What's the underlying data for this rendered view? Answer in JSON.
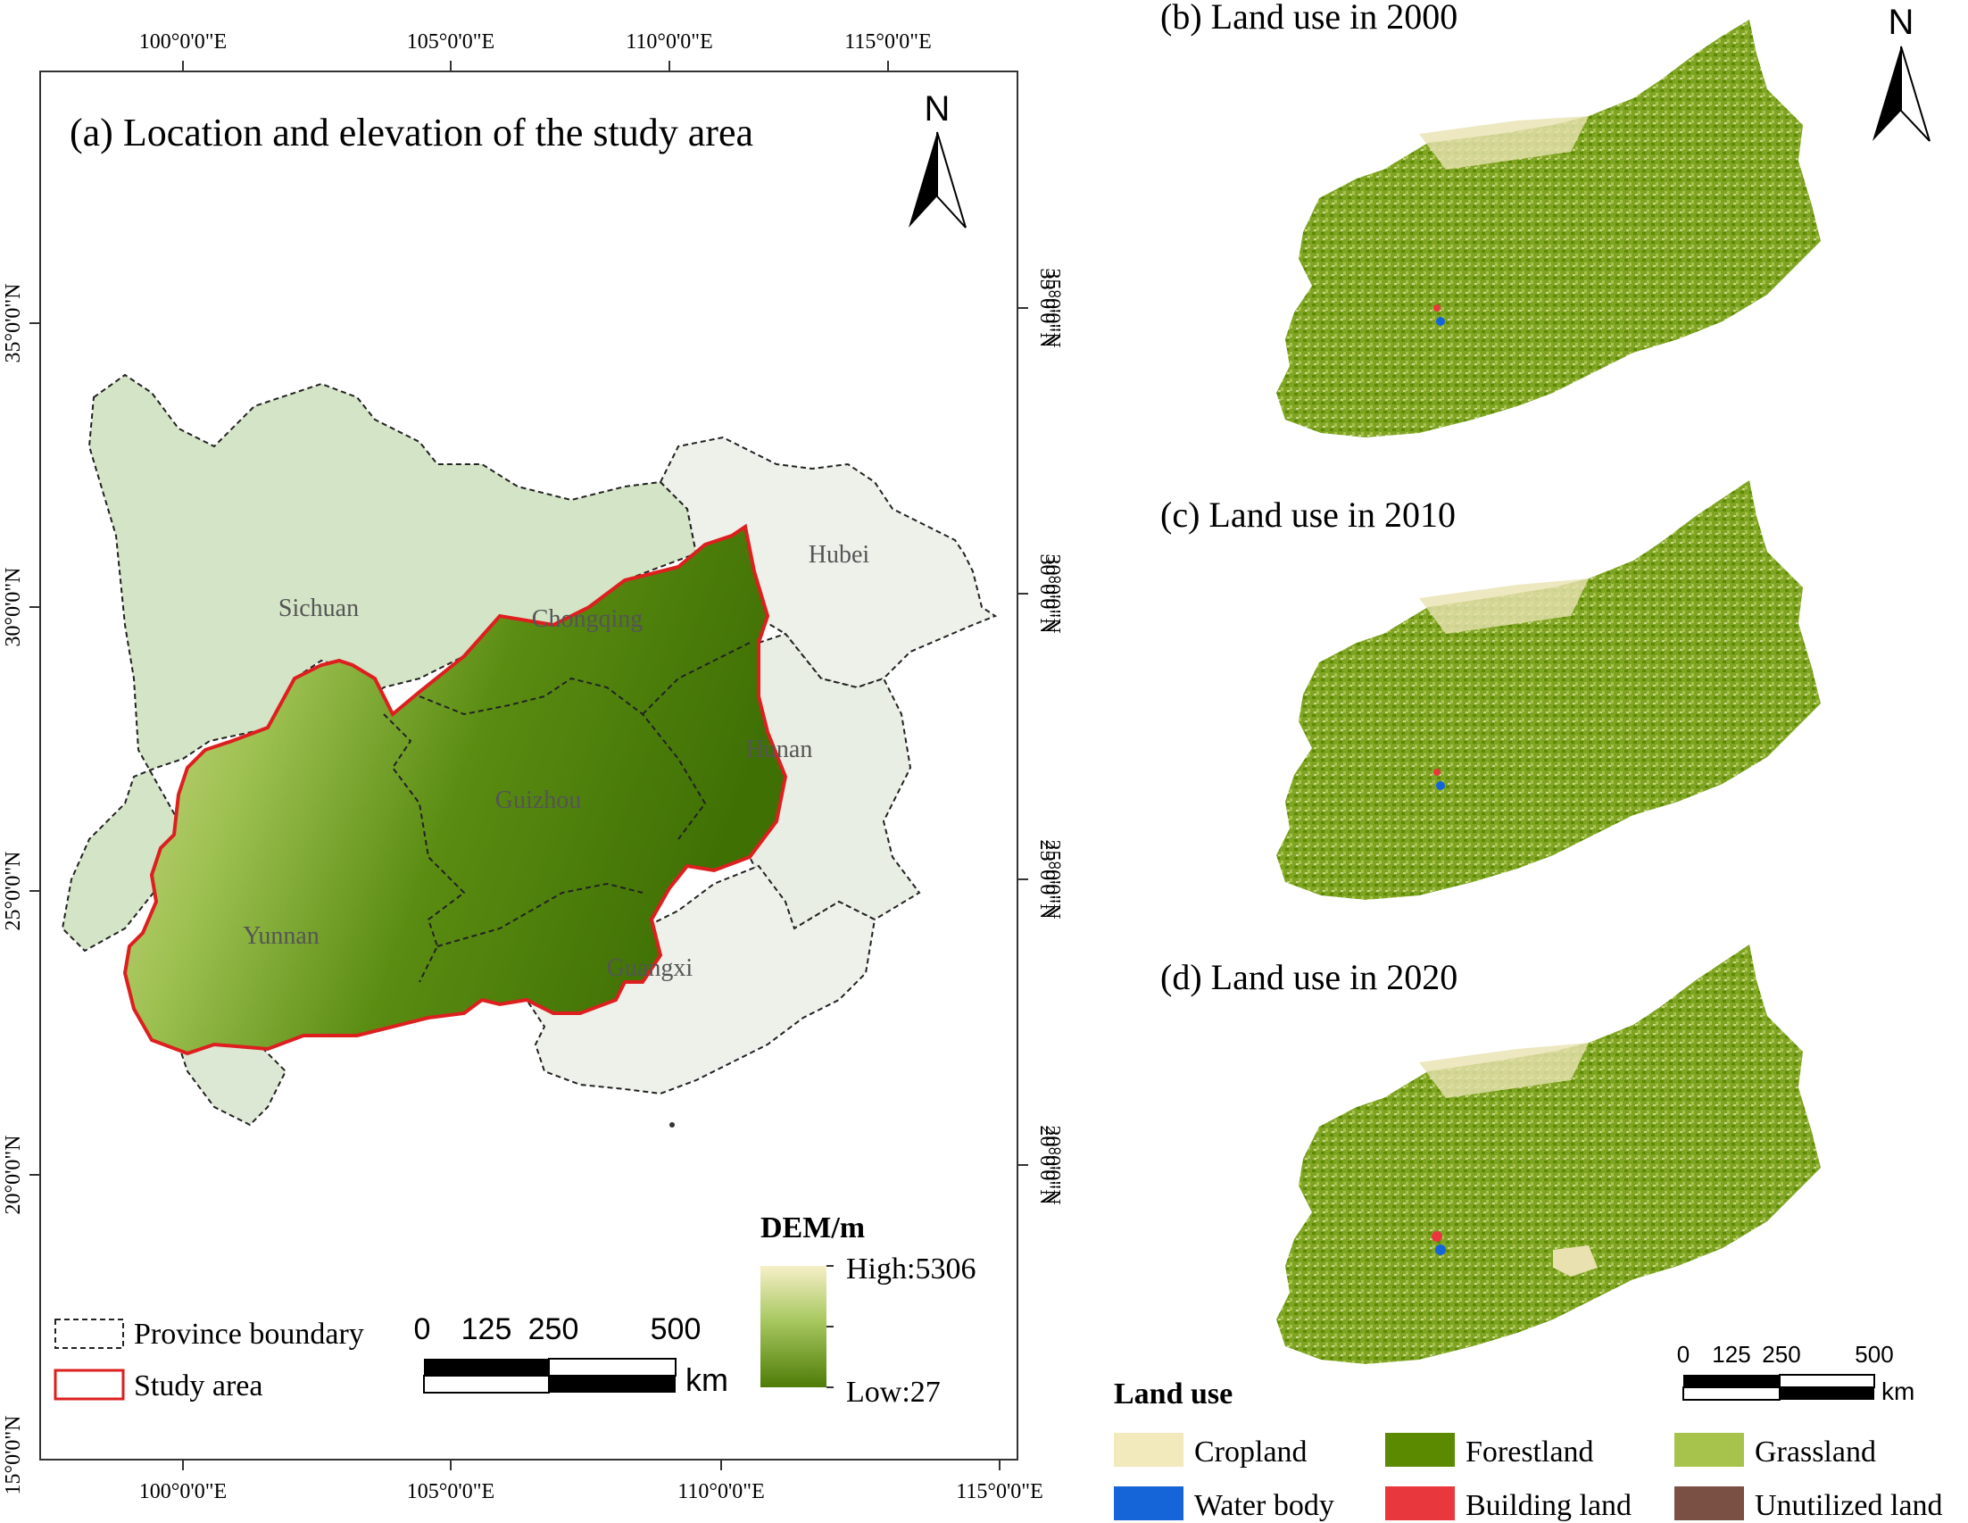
{
  "panel_a": {
    "title": "(a) Location and elevation of the study area",
    "north": "N",
    "lon_ticks": [
      "100°0'0\"E",
      "105°0'0\"E",
      "110°0'0\"E",
      "115°0'0\"E"
    ],
    "lat_ticks": [
      "35°0'0\"N",
      "30°0'0\"N",
      "25°0'0\"N",
      "20°0'0\"N",
      "15°0'0\"N"
    ],
    "provinces": [
      "Sichuan",
      "Chongqing",
      "Hubei",
      "Hunan",
      "Guizhou",
      "Yunnan",
      "Guangxi"
    ],
    "legend": {
      "province_boundary": "Province boundary",
      "study_area": "Study area",
      "dem_title": "DEM/m",
      "dem_high": "High:5306",
      "dem_low": "Low:27"
    },
    "scale": {
      "ticks": [
        "0",
        "125",
        "250",
        "500"
      ],
      "unit": "km"
    }
  },
  "panels_right": [
    {
      "title": "(b) Land use in 2000"
    },
    {
      "title": "(c) Land use in 2010"
    },
    {
      "title": "(d) Land use in 2020"
    }
  ],
  "right_north": "N",
  "right_lat_ticks": [
    "35°0'0\"N",
    "30°0'0\"N",
    "25°0'0\"N",
    "20°0'0\"N"
  ],
  "right_scale": {
    "ticks": [
      "0",
      "125",
      "250",
      "500"
    ],
    "unit": "km"
  },
  "land_use_legend": {
    "title": "Land use",
    "items": [
      {
        "label": "Cropland",
        "color": "#f2e9bc"
      },
      {
        "label": "Forestland",
        "color": "#5b8a00"
      },
      {
        "label": "Grassland",
        "color": "#a8c34c"
      },
      {
        "label": "Water body",
        "color": "#1565d8"
      },
      {
        "label": "Building land",
        "color": "#e8383d"
      },
      {
        "label": "Unutilized land",
        "color": "#7a5044"
      }
    ]
  }
}
